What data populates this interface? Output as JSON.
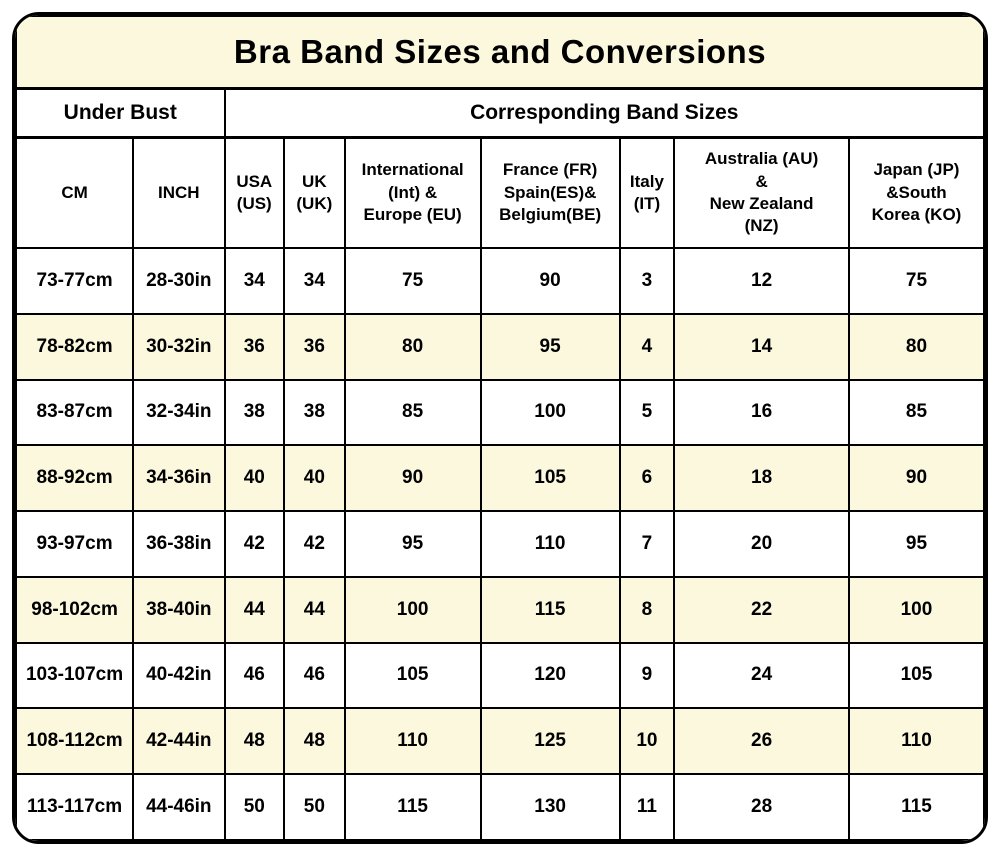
{
  "title": "Bra Band Sizes and Conversions",
  "colors": {
    "cream_bg": "#FBF8DE",
    "row_base": "#FFFFFF",
    "border": "#000000",
    "text": "#000000"
  },
  "group_headers": {
    "under_bust": "Under Bust",
    "band_sizes": "Corresponding Band Sizes"
  },
  "chart_data": {
    "type": "table",
    "title": "Bra Band Sizes and Conversions",
    "column_groups": [
      {
        "label": "Under Bust",
        "span": 2
      },
      {
        "label": "Corresponding Band Sizes",
        "span": 7
      }
    ],
    "columns": [
      "CM",
      "INCH",
      "USA\n(US)",
      "UK\n(UK)",
      "International\n(Int) &\nEurope (EU)",
      "France (FR)\nSpain(ES)&\nBelgium(BE)",
      "Italy\n(IT)",
      "Australia (AU)\n&\nNew Zealand\n(NZ)",
      "Japan (JP)\n&South\nKorea (KO)"
    ],
    "rows": [
      [
        "73-77cm",
        "28-30in",
        "34",
        "34",
        "75",
        "90",
        "3",
        "12",
        "75"
      ],
      [
        "78-82cm",
        "30-32in",
        "36",
        "36",
        "80",
        "95",
        "4",
        "14",
        "80"
      ],
      [
        "83-87cm",
        "32-34in",
        "38",
        "38",
        "85",
        "100",
        "5",
        "16",
        "85"
      ],
      [
        "88-92cm",
        "34-36in",
        "40",
        "40",
        "90",
        "105",
        "6",
        "18",
        "90"
      ],
      [
        "93-97cm",
        "36-38in",
        "42",
        "42",
        "95",
        "110",
        "7",
        "20",
        "95"
      ],
      [
        "98-102cm",
        "38-40in",
        "44",
        "44",
        "100",
        "115",
        "8",
        "22",
        "100"
      ],
      [
        "103-107cm",
        "40-42in",
        "46",
        "46",
        "105",
        "120",
        "9",
        "24",
        "105"
      ],
      [
        "108-112cm",
        "42-44in",
        "48",
        "48",
        "110",
        "125",
        "10",
        "26",
        "110"
      ],
      [
        "113-117cm",
        "44-46in",
        "50",
        "50",
        "115",
        "130",
        "11",
        "28",
        "115"
      ]
    ]
  }
}
